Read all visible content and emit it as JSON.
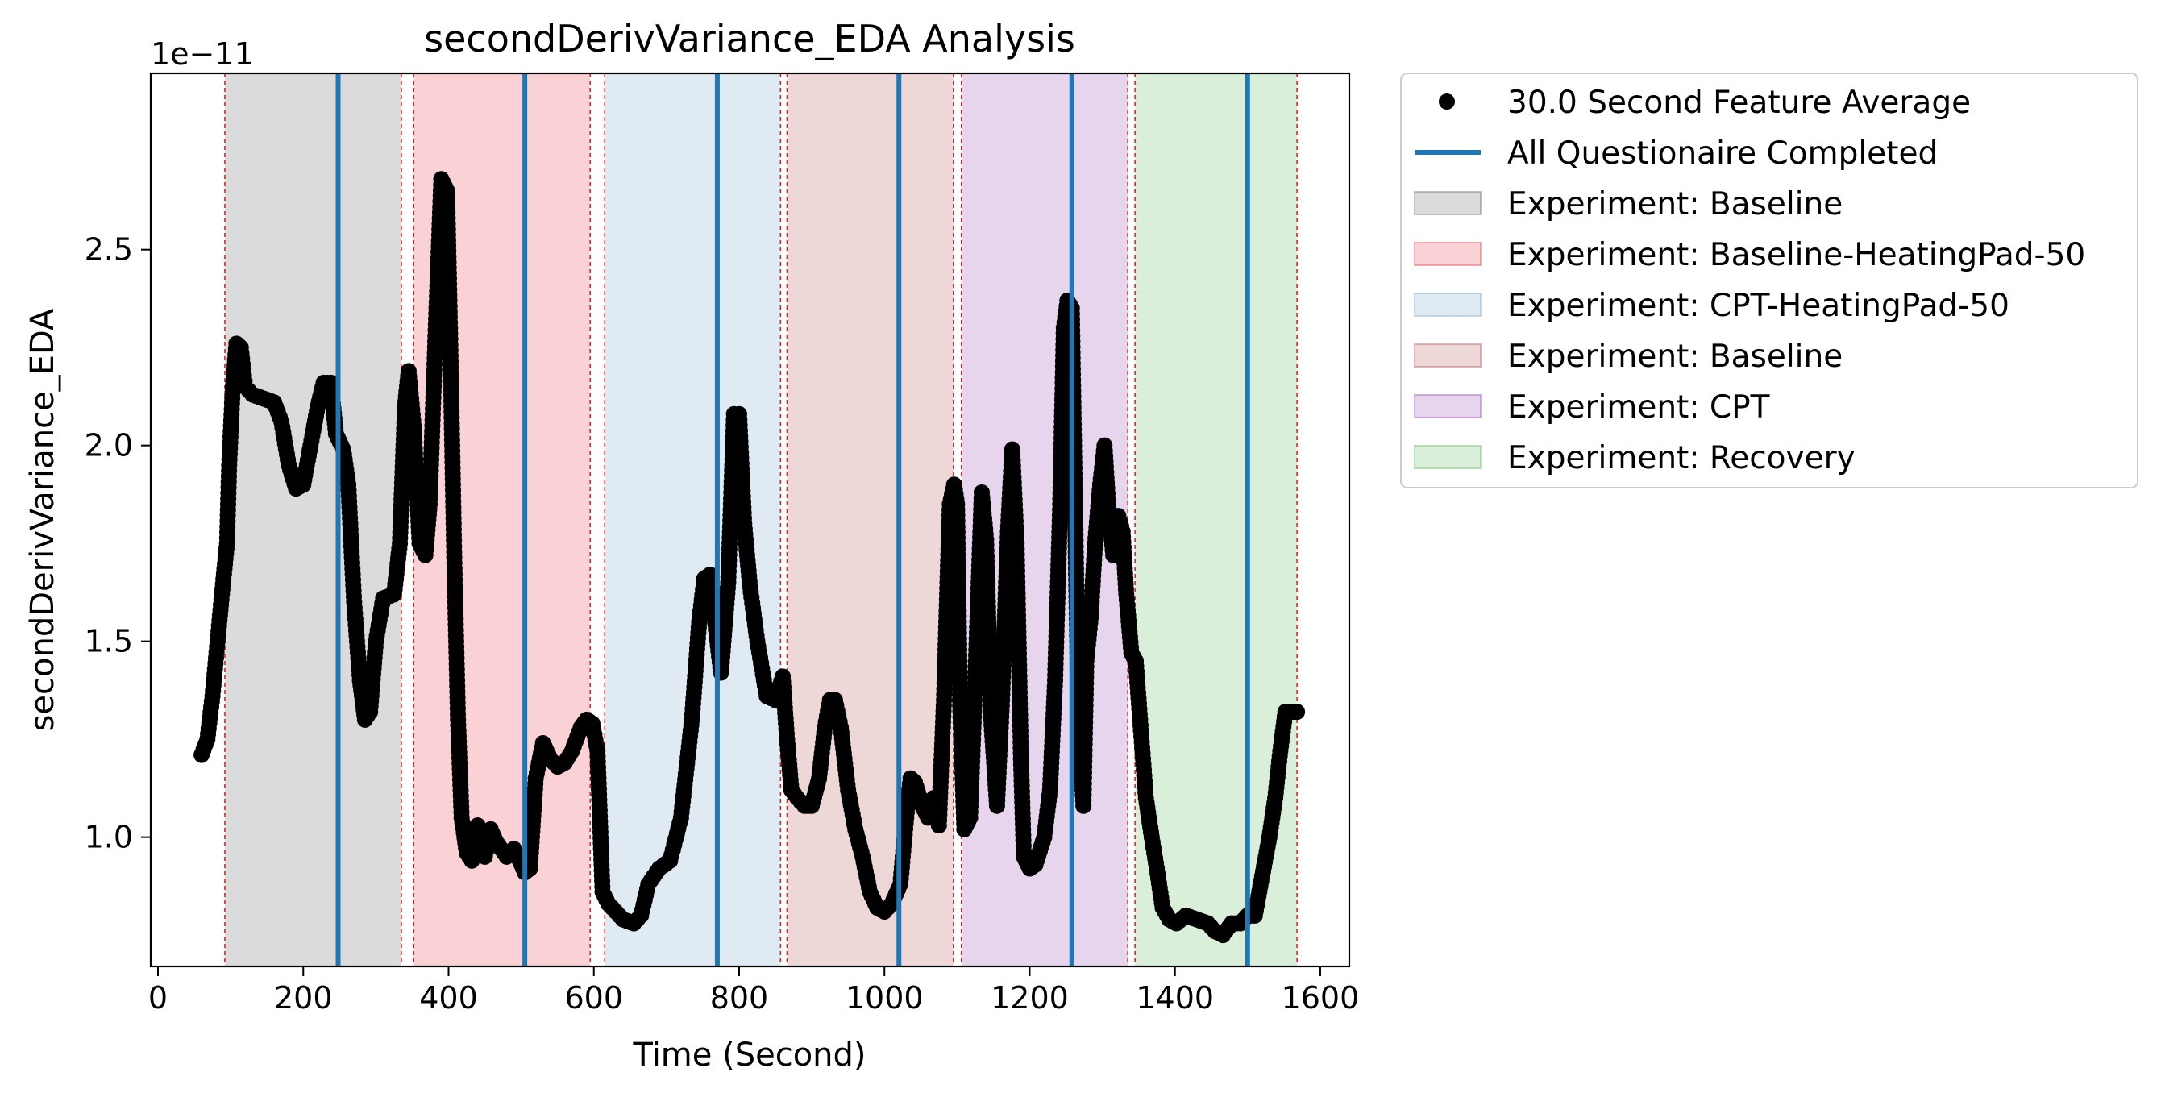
{
  "chart_data": {
    "type": "scatter",
    "title": "secondDerivVariance_EDA Analysis",
    "xlabel": "Time (Second)",
    "ylabel": "secondDerivVariance_EDA",
    "y_offset_label": "1e−11",
    "xlim": [
      -10,
      1640
    ],
    "ylim": [
      0.67,
      2.95
    ],
    "xticks": [
      0,
      200,
      400,
      600,
      800,
      1000,
      1200,
      1400,
      1600
    ],
    "yticks": [
      1.0,
      1.5,
      2.0,
      2.5
    ],
    "ytick_labels": [
      "1.0",
      "1.5",
      "2.0",
      "2.5"
    ],
    "grid": false,
    "legend_position": "outside-right-top",
    "series": [
      {
        "name": "30.0 Second Feature Average",
        "marker": "circle",
        "color": "#000000",
        "keypoints": [
          [
            60,
            1.21
          ],
          [
            68,
            1.25
          ],
          [
            75,
            1.36
          ],
          [
            82,
            1.5
          ],
          [
            88,
            1.62
          ],
          [
            95,
            1.75
          ],
          [
            98,
            1.95
          ],
          [
            103,
            2.15
          ],
          [
            108,
            2.26
          ],
          [
            114,
            2.25
          ],
          [
            120,
            2.15
          ],
          [
            130,
            2.13
          ],
          [
            145,
            2.12
          ],
          [
            160,
            2.11
          ],
          [
            170,
            2.06
          ],
          [
            180,
            1.95
          ],
          [
            190,
            1.89
          ],
          [
            200,
            1.9
          ],
          [
            210,
            2.0
          ],
          [
            220,
            2.1
          ],
          [
            228,
            2.16
          ],
          [
            238,
            2.16
          ],
          [
            245,
            2.03
          ],
          [
            255,
            1.99
          ],
          [
            262,
            1.9
          ],
          [
            270,
            1.6
          ],
          [
            278,
            1.4
          ],
          [
            285,
            1.3
          ],
          [
            292,
            1.32
          ],
          [
            300,
            1.5
          ],
          [
            310,
            1.61
          ],
          [
            325,
            1.62
          ],
          [
            333,
            1.75
          ],
          [
            340,
            2.1
          ],
          [
            345,
            2.19
          ],
          [
            352,
            2.05
          ],
          [
            360,
            1.75
          ],
          [
            368,
            1.72
          ],
          [
            374,
            1.85
          ],
          [
            382,
            2.28
          ],
          [
            390,
            2.68
          ],
          [
            398,
            2.65
          ],
          [
            402,
            2.3
          ],
          [
            408,
            1.7
          ],
          [
            413,
            1.3
          ],
          [
            418,
            1.05
          ],
          [
            425,
            0.96
          ],
          [
            432,
            0.94
          ],
          [
            440,
            1.03
          ],
          [
            450,
            0.95
          ],
          [
            458,
            1.02
          ],
          [
            465,
            0.99
          ],
          [
            480,
            0.95
          ],
          [
            490,
            0.97
          ],
          [
            498,
            0.94
          ],
          [
            505,
            0.91
          ],
          [
            512,
            0.92
          ],
          [
            520,
            1.15
          ],
          [
            530,
            1.24
          ],
          [
            540,
            1.2
          ],
          [
            550,
            1.18
          ],
          [
            560,
            1.19
          ],
          [
            570,
            1.22
          ],
          [
            582,
            1.28
          ],
          [
            590,
            1.3
          ],
          [
            598,
            1.29
          ],
          [
            605,
            1.22
          ],
          [
            612,
            0.86
          ],
          [
            620,
            0.83
          ],
          [
            640,
            0.79
          ],
          [
            655,
            0.78
          ],
          [
            665,
            0.8
          ],
          [
            675,
            0.88
          ],
          [
            690,
            0.92
          ],
          [
            705,
            0.94
          ],
          [
            720,
            1.05
          ],
          [
            735,
            1.3
          ],
          [
            745,
            1.55
          ],
          [
            752,
            1.66
          ],
          [
            760,
            1.67
          ],
          [
            768,
            1.53
          ],
          [
            775,
            1.42
          ],
          [
            785,
            1.65
          ],
          [
            793,
            2.08
          ],
          [
            800,
            2.08
          ],
          [
            807,
            1.8
          ],
          [
            815,
            1.64
          ],
          [
            825,
            1.5
          ],
          [
            838,
            1.36
          ],
          [
            850,
            1.35
          ],
          [
            860,
            1.41
          ],
          [
            866,
            1.25
          ],
          [
            872,
            1.12
          ],
          [
            880,
            1.1
          ],
          [
            890,
            1.08
          ],
          [
            900,
            1.08
          ],
          [
            910,
            1.15
          ],
          [
            918,
            1.28
          ],
          [
            925,
            1.35
          ],
          [
            932,
            1.35
          ],
          [
            940,
            1.28
          ],
          [
            950,
            1.12
          ],
          [
            960,
            1.02
          ],
          [
            970,
            0.95
          ],
          [
            980,
            0.86
          ],
          [
            990,
            0.82
          ],
          [
            1000,
            0.81
          ],
          [
            1010,
            0.83
          ],
          [
            1022,
            0.88
          ],
          [
            1030,
            1.05
          ],
          [
            1036,
            1.15
          ],
          [
            1042,
            1.14
          ],
          [
            1052,
            1.08
          ],
          [
            1060,
            1.05
          ],
          [
            1068,
            1.1
          ],
          [
            1075,
            1.03
          ],
          [
            1082,
            1.35
          ],
          [
            1090,
            1.85
          ],
          [
            1096,
            1.9
          ],
          [
            1100,
            1.85
          ],
          [
            1104,
            1.35
          ],
          [
            1110,
            1.02
          ],
          [
            1118,
            1.05
          ],
          [
            1126,
            1.45
          ],
          [
            1134,
            1.88
          ],
          [
            1140,
            1.76
          ],
          [
            1147,
            1.3
          ],
          [
            1155,
            1.08
          ],
          [
            1162,
            1.35
          ],
          [
            1170,
            1.78
          ],
          [
            1176,
            1.99
          ],
          [
            1182,
            1.75
          ],
          [
            1188,
            1.2
          ],
          [
            1192,
            0.95
          ],
          [
            1200,
            0.92
          ],
          [
            1208,
            0.93
          ],
          [
            1220,
            1.0
          ],
          [
            1228,
            1.12
          ],
          [
            1235,
            1.4
          ],
          [
            1242,
            1.85
          ],
          [
            1247,
            2.3
          ],
          [
            1252,
            2.37
          ],
          [
            1258,
            2.35
          ],
          [
            1262,
            1.9
          ],
          [
            1267,
            1.3
          ],
          [
            1274,
            1.08
          ],
          [
            1278,
            1.45
          ],
          [
            1284,
            1.56
          ],
          [
            1290,
            1.75
          ],
          [
            1297,
            1.9
          ],
          [
            1303,
            2.0
          ],
          [
            1308,
            1.85
          ],
          [
            1315,
            1.72
          ],
          [
            1322,
            1.82
          ],
          [
            1328,
            1.78
          ],
          [
            1333,
            1.62
          ],
          [
            1340,
            1.47
          ],
          [
            1346,
            1.45
          ],
          [
            1352,
            1.3
          ],
          [
            1360,
            1.1
          ],
          [
            1368,
            1.0
          ],
          [
            1375,
            0.92
          ],
          [
            1383,
            0.82
          ],
          [
            1392,
            0.79
          ],
          [
            1402,
            0.78
          ],
          [
            1415,
            0.8
          ],
          [
            1430,
            0.79
          ],
          [
            1445,
            0.78
          ],
          [
            1455,
            0.76
          ],
          [
            1466,
            0.75
          ],
          [
            1478,
            0.78
          ],
          [
            1490,
            0.78
          ],
          [
            1500,
            0.8
          ],
          [
            1510,
            0.8
          ],
          [
            1520,
            0.9
          ],
          [
            1530,
            1.0
          ],
          [
            1538,
            1.1
          ],
          [
            1545,
            1.22
          ],
          [
            1552,
            1.32
          ],
          [
            1568,
            1.32
          ]
        ]
      },
      {
        "name": "All Questionaire Completed",
        "type": "vline",
        "color": "#1f77b4",
        "x": [
          248,
          505,
          770,
          1020,
          1258,
          1500
        ]
      }
    ],
    "regions": [
      {
        "label": "Experiment: Baseline",
        "color": "#7f7f7f",
        "start": 92,
        "end": 335,
        "in_legend": true
      },
      {
        "label": "Experiment: Baseline-HeatingPad-50",
        "color": "#ec5b63",
        "start": 352,
        "end": 595,
        "in_legend": true
      },
      {
        "label": "Experiment: CPT-HeatingPad-50",
        "color": "#8fb3d4",
        "start": 615,
        "end": 857,
        "in_legend": true
      },
      {
        "label": "Experiment: Baseline",
        "color": "#bf6f6f",
        "start": 866,
        "end": 1095,
        "in_legend": true
      },
      {
        "label": "Experiment: CPT",
        "color": "#a569bd",
        "start": 1106,
        "end": 1335,
        "in_legend": true
      },
      {
        "label": "Experiment: Recovery",
        "color": "#7bc47b",
        "start": 1345,
        "end": 1568,
        "in_legend": true
      }
    ],
    "region_boundaries_red_dashed": [
      92,
      335,
      352,
      595,
      615,
      857,
      866,
      1095,
      1106,
      1335,
      1345,
      1568
    ]
  }
}
